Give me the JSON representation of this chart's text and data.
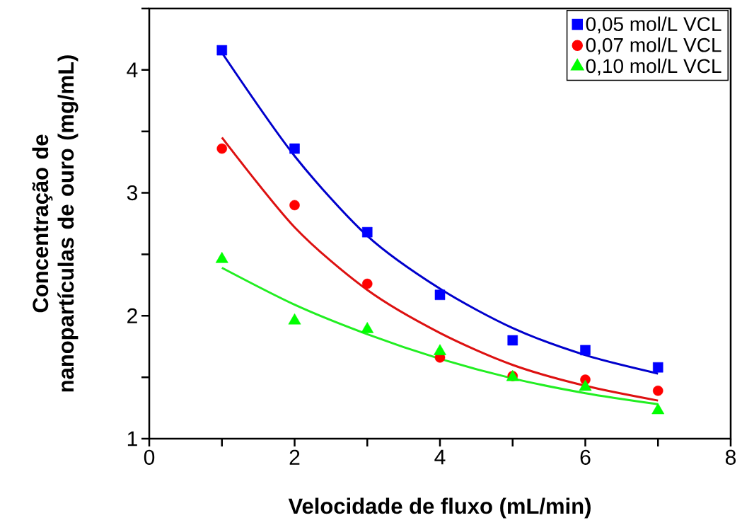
{
  "chart_data": {
    "type": "scatter",
    "xlabel": "Velocidade de fluxo (mL/min)",
    "ylabel": "Concentração de nanopartículas de ouro (mg/mL)",
    "x": [
      1,
      2,
      3,
      4,
      5,
      6,
      7
    ],
    "series": [
      {
        "name": "0,05 mol/L VCL",
        "marker": "square",
        "color": "#0000ff",
        "values": [
          4.16,
          3.36,
          2.68,
          2.17,
          1.8,
          1.72,
          1.58
        ]
      },
      {
        "name": "0,07 mol/L VCL",
        "marker": "circle",
        "color": "#ff0000",
        "values": [
          3.36,
          2.9,
          2.26,
          1.66,
          1.51,
          1.48,
          1.39
        ]
      },
      {
        "name": "0,10 mol/L VCL",
        "marker": "triangle",
        "color": "#00ff00",
        "values": [
          2.46,
          1.96,
          1.89,
          1.71,
          1.5,
          1.42,
          1.23
        ]
      },
      {
        "type": "line",
        "marker": "none",
        "line_style": "solid",
        "color": "#0000cc",
        "values": [
          4.14,
          3.3,
          2.65,
          2.22,
          1.9,
          1.68,
          1.53
        ]
      },
      {
        "type": "line",
        "marker": "none",
        "line_style": "solid",
        "color": "#dd1111",
        "values": [
          3.45,
          2.72,
          2.21,
          1.86,
          1.6,
          1.43,
          1.31
        ]
      },
      {
        "type": "line",
        "marker": "none",
        "line_style": "solid",
        "color": "#22ee22",
        "values": [
          2.39,
          2.09,
          1.85,
          1.65,
          1.49,
          1.37,
          1.28
        ]
      }
    ],
    "xlim": [
      0,
      8
    ],
    "xticks": [
      0,
      {
        "value": 1,
        "label": null
      },
      2,
      {
        "value": 3,
        "label": null
      },
      4,
      {
        "value": 5,
        "label": null
      },
      6,
      {
        "value": 7,
        "label": null
      },
      8
    ],
    "ylim": [
      1,
      4.5
    ],
    "yticks": [
      1,
      {
        "value": 1.5,
        "label": null
      },
      2,
      {
        "value": 2.5,
        "label": null
      },
      3,
      {
        "value": 3.5,
        "label": null
      },
      4,
      {
        "value": 4.5,
        "label": null
      }
    ],
    "legend": "top right"
  }
}
